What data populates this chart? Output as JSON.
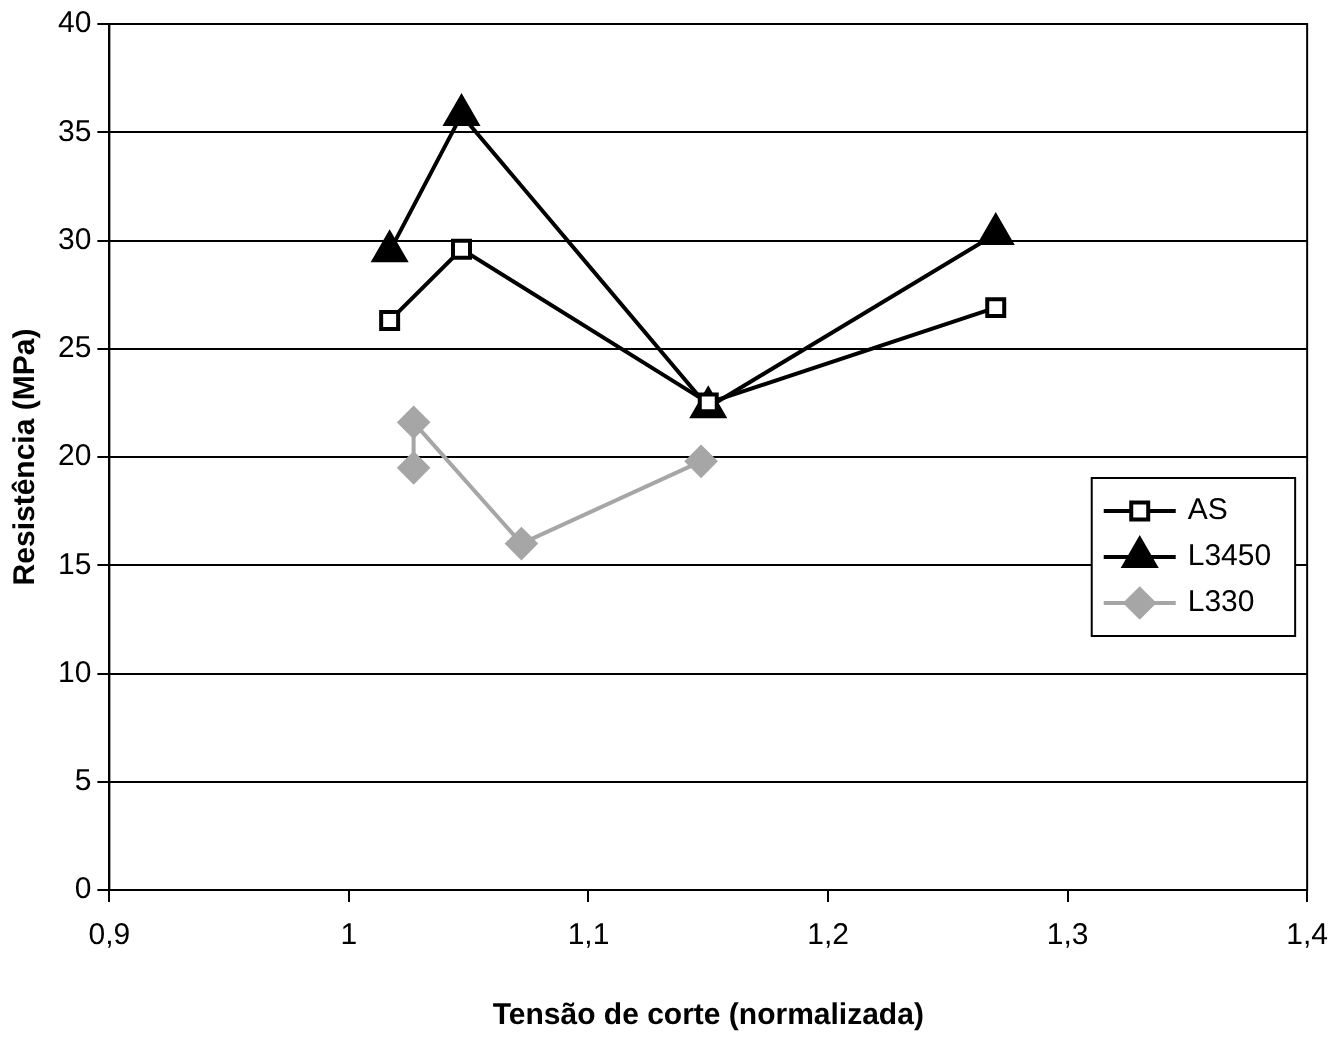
{
  "chart_data": {
    "type": "line",
    "xlabel": "Tensão de corte (normalizada)",
    "ylabel": "Resistência (MPa)",
    "xlim": [
      0.9,
      1.4
    ],
    "xticks": [
      {
        "value": 0.9,
        "label": "0,9"
      },
      {
        "value": 1,
        "label": "1"
      },
      {
        "value": 1.1,
        "label": "1,1"
      },
      {
        "value": 1.2,
        "label": "1,2"
      },
      {
        "value": 1.3,
        "label": "1,3"
      },
      {
        "value": 1.4,
        "label": "1,4"
      }
    ],
    "ylim": [
      0,
      40
    ],
    "yticks": [
      0,
      5,
      10,
      15,
      20,
      25,
      30,
      35,
      40
    ],
    "grid": "y",
    "legend": "right",
    "line_style": "solid",
    "series": [
      {
        "name": "AS",
        "color": "#000000",
        "marker": "square",
        "x": [
          1.017,
          1.047,
          1.15,
          1.27
        ],
        "values": [
          26.3,
          29.6,
          22.5,
          26.9
        ]
      },
      {
        "name": "L3450",
        "color": "#000000",
        "marker": "triangle",
        "x": [
          1.017,
          1.047,
          1.15,
          1.27
        ],
        "values": [
          29.5,
          35.8,
          22.3,
          30.3
        ]
      },
      {
        "name": "L330",
        "color": "#a6a6a6",
        "marker": "diamond",
        "x": [
          1.027,
          1.027,
          1.072,
          1.147
        ],
        "values": [
          19.5,
          21.6,
          16.0,
          19.8
        ]
      }
    ]
  }
}
